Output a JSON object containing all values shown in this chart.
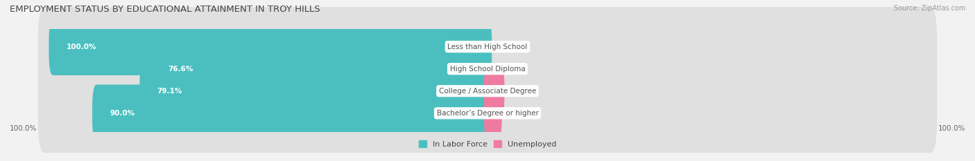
{
  "title": "EMPLOYMENT STATUS BY EDUCATIONAL ATTAINMENT IN TROY HILLS",
  "source": "Source: ZipAtlas.com",
  "categories": [
    "Less than High School",
    "High School Diploma",
    "College / Associate Degree",
    "Bachelor’s Degree or higher"
  ],
  "labor_force": [
    100.0,
    76.6,
    79.1,
    90.0
  ],
  "unemployed": [
    0.0,
    0.0,
    3.1,
    2.5
  ],
  "labor_force_color": "#4BBFC0",
  "unemployed_color": "#F07BA0",
  "background_color": "#f2f2f2",
  "bar_background_color": "#e0e0e0",
  "axis_label_left": "100.0%",
  "axis_label_right": "100.0%",
  "legend_labor": "In Labor Force",
  "legend_unemployed": "Unemployed",
  "bar_height": 0.58,
  "max_val": 100.0,
  "title_fontsize": 9.5,
  "source_fontsize": 7,
  "label_fontsize": 7.5,
  "value_fontsize": 7.5,
  "axis_fontsize": 7.5,
  "legend_fontsize": 8,
  "lf_label_color": "#ffffff",
  "cat_label_color": "#555555",
  "value_right_color": "#555555"
}
